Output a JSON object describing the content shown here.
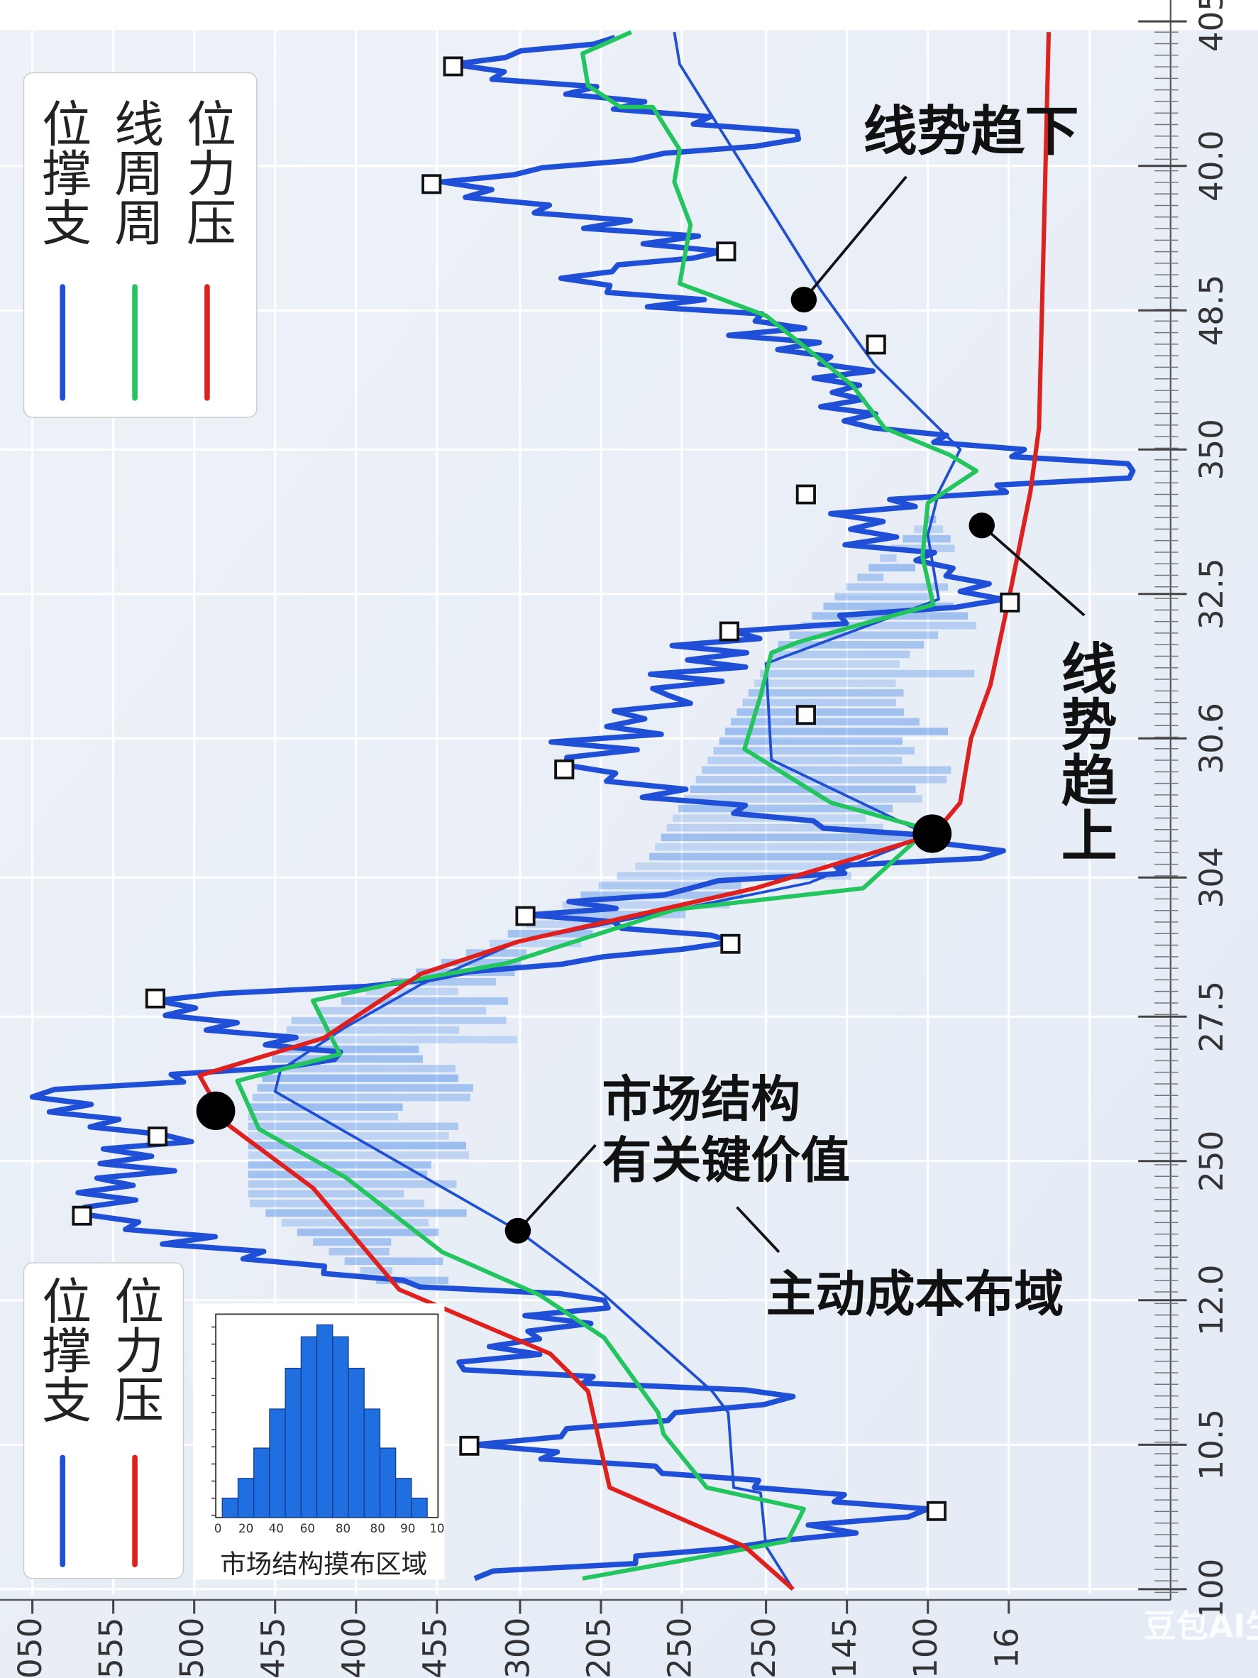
{
  "legend_top": {
    "items": [
      {
        "label": "位撑支",
        "color": "#1f4fd6"
      },
      {
        "label": "线周周",
        "color": "#22c55e"
      },
      {
        "label": "位力压",
        "color": "#e0201c"
      }
    ]
  },
  "legend_bottom": {
    "items": [
      {
        "label": "位撑支",
        "color": "#1f4fd6"
      },
      {
        "label": "位力压",
        "color": "#e0201c"
      }
    ]
  },
  "annotations": {
    "down": "线势趋下",
    "up": "线势趋上",
    "key_value": [
      "市场结构",
      "有关键价值"
    ],
    "cost": "主动成本布域"
  },
  "right_axis_labels": [
    "405",
    "40.0",
    "48.5",
    "350",
    "32.5",
    "30.6",
    "304",
    "27.5",
    "250",
    "12.0",
    "10.5",
    "100"
  ],
  "bottom_axis_labels": [
    "050",
    "555",
    "500",
    "455",
    "400",
    "455",
    "300",
    "205",
    "250",
    "250",
    "145",
    "100",
    "16"
  ],
  "inset": {
    "title": "市场结构摸布区域",
    "x_labels": [
      "0",
      "20",
      "40",
      "60",
      "80",
      "80",
      "90",
      "10"
    ]
  },
  "watermark": "豆包AI生成"
}
